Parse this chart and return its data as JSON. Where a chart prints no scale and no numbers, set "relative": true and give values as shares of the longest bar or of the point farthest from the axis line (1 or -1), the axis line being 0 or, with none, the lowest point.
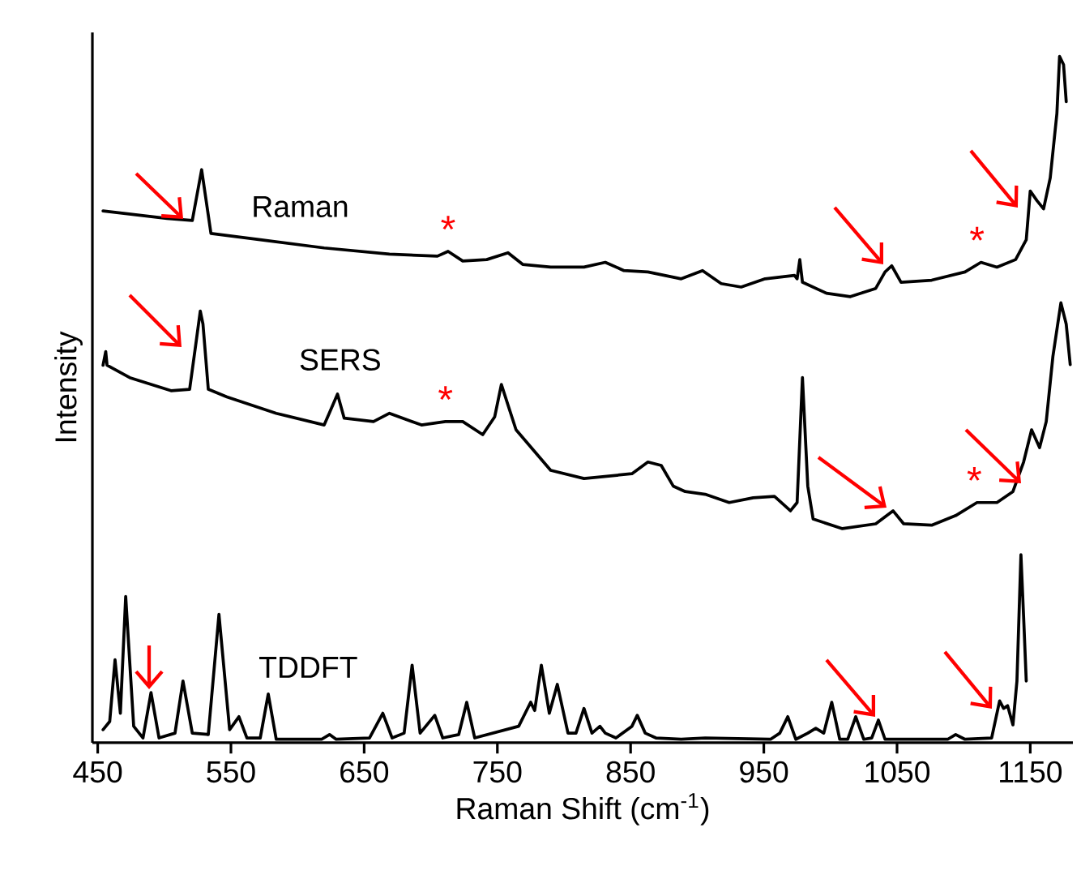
{
  "chart_data": {
    "type": "line",
    "relative": true,
    "xlabel": "Raman Shift (cm$^{-1}$)",
    "ylabel": "Intensity",
    "xlim": [
      446,
      1182
    ],
    "xticks": [
      450,
      550,
      650,
      750,
      850,
      950,
      1050,
      1150
    ],
    "series": [
      {
        "name": "Raman",
        "color": "#000000",
        "x": [
          454,
          502,
          521,
          528,
          535,
          572,
          620,
          669,
          705,
          713,
          724,
          742,
          758,
          769,
          790,
          815,
          831,
          845,
          863,
          888,
          904,
          918,
          933,
          951,
          973,
          975,
          977,
          979,
          997,
          1015,
          1034,
          1041,
          1046,
          1053,
          1076,
          1101,
          1113,
          1125,
          1139,
          1147,
          1150,
          1155,
          1160,
          1165,
          1170,
          1172,
          1175,
          1177
        ],
        "values": [
          0.775,
          0.764,
          0.761,
          0.835,
          0.742,
          0.733,
          0.721,
          0.712,
          0.709,
          0.716,
          0.702,
          0.704,
          0.714,
          0.697,
          0.693,
          0.693,
          0.7,
          0.688,
          0.686,
          0.676,
          0.688,
          0.669,
          0.664,
          0.676,
          0.681,
          0.676,
          0.704,
          0.671,
          0.655,
          0.65,
          0.662,
          0.686,
          0.695,
          0.671,
          0.674,
          0.686,
          0.7,
          0.693,
          0.704,
          0.733,
          0.804,
          0.79,
          0.778,
          0.823,
          0.917,
          1.0,
          0.988,
          0.934
        ]
      },
      {
        "name": "SERS",
        "color": "#000000",
        "x": [
          454,
          456,
          457,
          474,
          505,
          519,
          524,
          527,
          529,
          533,
          547,
          584,
          620,
          630,
          635,
          657,
          669,
          693,
          711,
          724,
          739,
          748,
          753,
          758,
          764,
          790,
          815,
          851,
          863,
          873,
          882,
          891,
          906,
          924,
          942,
          958,
          970,
          975,
          979,
          983,
          987,
          1009,
          1034,
          1047,
          1055,
          1076,
          1094,
          1110,
          1125,
          1137,
          1145,
          1151,
          1157,
          1162,
          1167,
          1173,
          1177,
          1180
        ],
        "values": [
          0.55,
          0.57,
          0.55,
          0.532,
          0.513,
          0.515,
          0.586,
          0.629,
          0.61,
          0.515,
          0.504,
          0.48,
          0.463,
          0.508,
          0.473,
          0.468,
          0.48,
          0.463,
          0.468,
          0.468,
          0.449,
          0.475,
          0.522,
          0.492,
          0.456,
          0.397,
          0.385,
          0.392,
          0.409,
          0.404,
          0.374,
          0.366,
          0.362,
          0.35,
          0.357,
          0.359,
          0.338,
          0.35,
          0.532,
          0.374,
          0.326,
          0.312,
          0.319,
          0.338,
          0.319,
          0.317,
          0.331,
          0.35,
          0.35,
          0.366,
          0.409,
          0.456,
          0.43,
          0.468,
          0.563,
          0.641,
          0.61,
          0.551
        ]
      },
      {
        "name": "TDDFT",
        "color": "#000000",
        "x": [
          454,
          459,
          463,
          467,
          471,
          477,
          484,
          490,
          496,
          508,
          514,
          521,
          533,
          541,
          549,
          556,
          562,
          572,
          578,
          584,
          618,
          624,
          629,
          654,
          664,
          671,
          680,
          686,
          692,
          703,
          709,
          721,
          727,
          733,
          766,
          775,
          778,
          783,
          789,
          795,
          803,
          809,
          815,
          821,
          827,
          831,
          839,
          851,
          855,
          861,
          869,
          888,
          906,
          955,
          962,
          968,
          974,
          983,
          989,
          995,
          1001,
          1007,
          1013,
          1019,
          1025,
          1031,
          1036,
          1041,
          1088,
          1094,
          1101,
          1121,
          1127,
          1130,
          1133,
          1137,
          1140,
          1143,
          1145,
          1147
        ],
        "values": [
          0.019,
          0.031,
          0.121,
          0.043,
          0.213,
          0.024,
          0.007,
          0.073,
          0.007,
          0.014,
          0.09,
          0.014,
          0.012,
          0.187,
          0.019,
          0.038,
          0.007,
          0.007,
          0.071,
          0.005,
          0.005,
          0.012,
          0.005,
          0.007,
          0.043,
          0.007,
          0.014,
          0.113,
          0.014,
          0.04,
          0.007,
          0.012,
          0.059,
          0.007,
          0.024,
          0.059,
          0.047,
          0.113,
          0.043,
          0.085,
          0.014,
          0.014,
          0.05,
          0.014,
          0.024,
          0.014,
          0.007,
          0.024,
          0.04,
          0.014,
          0.007,
          0.005,
          0.007,
          0.005,
          0.014,
          0.038,
          0.005,
          0.014,
          0.021,
          0.014,
          0.059,
          0.005,
          0.005,
          0.038,
          0.005,
          0.007,
          0.033,
          0.005,
          0.005,
          0.012,
          0.005,
          0.007,
          0.061,
          0.05,
          0.054,
          0.026,
          0.09,
          0.274,
          0.184,
          0.09
        ]
      }
    ],
    "annotations": [
      {
        "text": "*",
        "x": 713,
        "y": 0.716
      },
      {
        "text": "*",
        "x": 1110,
        "y": 0.7
      },
      {
        "text": "*",
        "x": 711,
        "y": 0.468
      },
      {
        "text": "*",
        "x": 1108,
        "y": 0.35
      }
    ]
  }
}
